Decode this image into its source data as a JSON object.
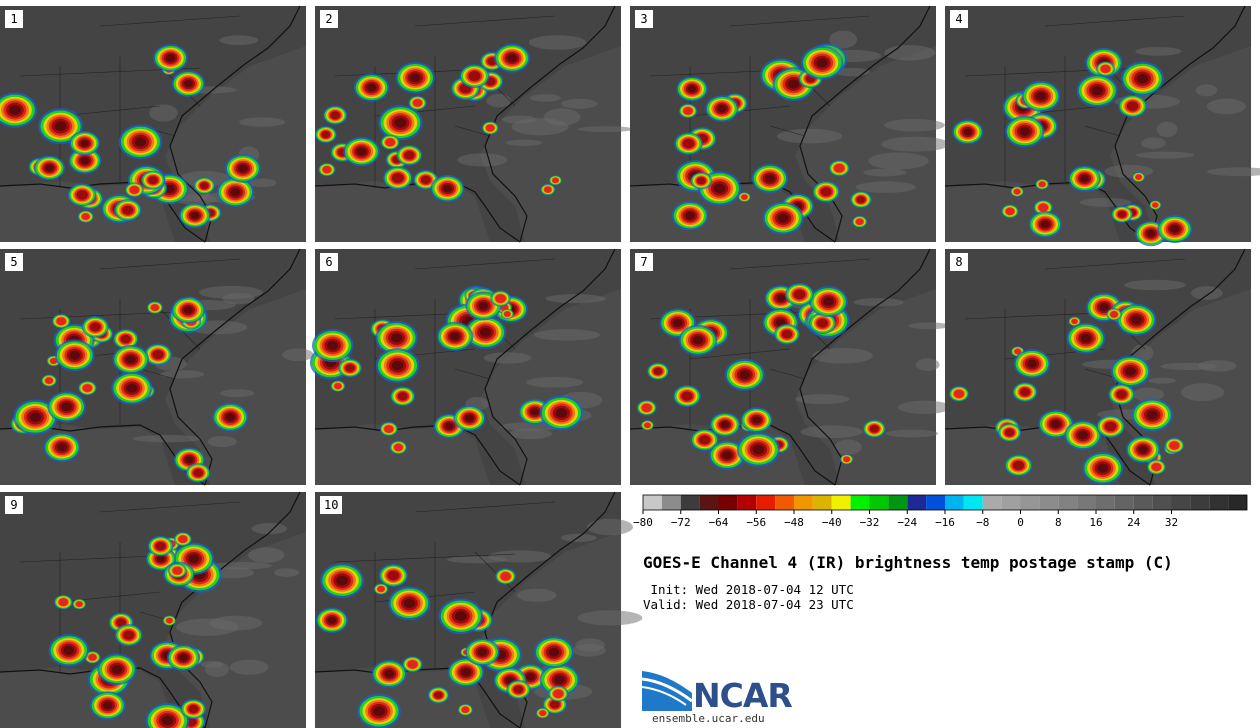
{
  "product": {
    "title": "GOES-E Channel 4 (IR) brightness temp postage stamp (C)",
    "init": " Init: Wed 2018-07-04 12 UTC",
    "valid": "Valid: Wed 2018-07-04 23 UTC"
  },
  "panels": [
    "1",
    "2",
    "3",
    "4",
    "5",
    "6",
    "7",
    "8",
    "9",
    "10"
  ],
  "colorbar": {
    "tick_labels": [
      "−80",
      "−72",
      "−64",
      "−56",
      "−48",
      "−40",
      "−32",
      "−24",
      "−16",
      "−8",
      "0",
      "8",
      "16",
      "24",
      "32"
    ],
    "colors": [
      "#c8c8c8",
      "#8c8c8c",
      "#3c3c3c",
      "#5a1414",
      "#780000",
      "#b40000",
      "#e61e00",
      "#f05a00",
      "#f09600",
      "#dcb400",
      "#f0f000",
      "#00f000",
      "#00c800",
      "#009614",
      "#1e2896",
      "#0050dc",
      "#00b4f0",
      "#00e6f0",
      "#aaaaaa",
      "#a0a0a0",
      "#969696",
      "#8c8c8c",
      "#828282",
      "#787878",
      "#6e6e6e",
      "#646464",
      "#5a5a5a",
      "#505050",
      "#464646",
      "#3c3c3c",
      "#323232",
      "#282828"
    ]
  },
  "logo": {
    "name": "NCAR",
    "url": "ensemble.ucar.edu"
  },
  "storm_colors": {
    "core": "#5a0a0a",
    "deep": "#9a0c0c",
    "red": "#e3261c",
    "orange": "#f07a12",
    "yellow": "#e2d20c",
    "green": "#1ed21e",
    "blue": "#1862d6"
  }
}
